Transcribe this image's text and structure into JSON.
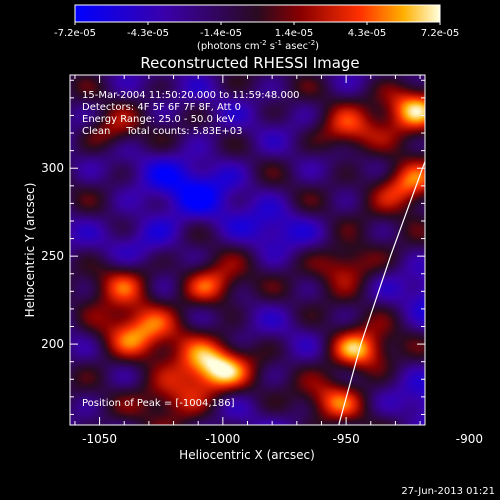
{
  "chart_data": {
    "type": "heatmap",
    "title": "Reconstructed RHESSI Image",
    "xlabel": "Heliocentric X (arcsec)",
    "ylabel": "Heliocentric Y (arcsec)",
    "xlim": [
      -1062,
      -918
    ],
    "ylim": [
      154,
      353
    ],
    "x_ticks": [
      -1050,
      -1000,
      -950,
      -900
    ],
    "y_ticks": [
      200,
      250,
      300
    ],
    "colorbar": {
      "range": [
        -7.2e-05,
        7.2e-05
      ],
      "tick_labels": [
        "-7.2e-05",
        "-4.3e-05",
        "-1.4e-05",
        "1.4e-05",
        "4.3e-05",
        "7.2e-05"
      ],
      "unit_prefix": "(photons cm",
      "unit_exp1": "-2",
      "unit_mid": " s",
      "unit_exp2": "-1",
      "unit_mid2": " asec",
      "unit_exp3": "-2",
      "unit_suffix": ")"
    },
    "info_lines": [
      "15-Mar-2004 11:50:20.000 to 11:59:48.000",
      "Detectors: 4F 5F 6F 7F 8F, Att 0",
      "Energy Range: 25.0 - 50.0 keV",
      "Clean     Total counts: 5.83E+03"
    ],
    "peak_label": "Position of Peak = [-1004,186]",
    "peak": [
      -1004,
      186
    ],
    "limb_curve": [
      [
        -953,
        154
      ],
      [
        -944,
        200
      ],
      [
        -932,
        250
      ],
      [
        -919,
        300
      ],
      [
        -905,
        353
      ]
    ],
    "blobs": [
      {
        "x": -1004,
        "y": 186,
        "amp": 1.0,
        "s": 10
      },
      {
        "x": -1035,
        "y": 205,
        "amp": 0.75,
        "s": 12
      },
      {
        "x": -1005,
        "y": 233,
        "amp": 0.7,
        "s": 9
      },
      {
        "x": -1040,
        "y": 236,
        "amp": 0.55,
        "s": 9
      },
      {
        "x": -945,
        "y": 196,
        "amp": 0.9,
        "s": 9
      },
      {
        "x": -950,
        "y": 245,
        "amp": 0.65,
        "s": 9
      },
      {
        "x": -955,
        "y": 168,
        "amp": 0.55,
        "s": 9
      },
      {
        "x": -925,
        "y": 290,
        "amp": 0.85,
        "s": 10
      },
      {
        "x": -922,
        "y": 335,
        "amp": 0.9,
        "s": 10
      },
      {
        "x": -950,
        "y": 320,
        "amp": 0.6,
        "s": 9
      },
      {
        "x": -1045,
        "y": 320,
        "amp": 0.45,
        "s": 8
      },
      {
        "x": -1020,
        "y": 170,
        "amp": 0.55,
        "s": 10
      },
      {
        "x": -1012,
        "y": 290,
        "amp": -0.45,
        "s": 14
      },
      {
        "x": -1030,
        "y": 262,
        "amp": -0.3,
        "s": 10
      },
      {
        "x": -910,
        "y": 230,
        "amp": -0.45,
        "s": 10
      },
      {
        "x": -900,
        "y": 205,
        "amp": -0.35,
        "s": 9
      },
      {
        "x": -915,
        "y": 165,
        "amp": -0.35,
        "s": 9
      },
      {
        "x": -980,
        "y": 265,
        "amp": -0.3,
        "s": 9
      }
    ]
  },
  "footer": {
    "timestamp": "27-Jun-2013 01:21"
  }
}
